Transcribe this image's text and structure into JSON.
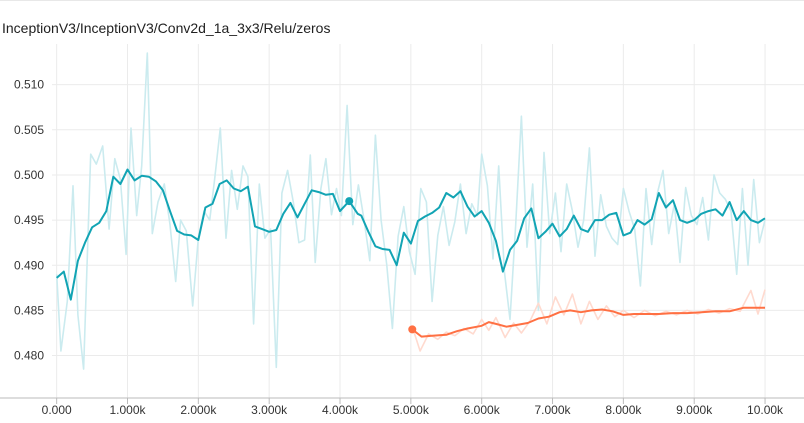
{
  "chart_data": {
    "type": "line",
    "title": "InceptionV3/InceptionV3/Conv2d_1a_3x3/Relu/zeros",
    "xlabel": "",
    "ylabel": "",
    "xlim": [
      -800,
      10550
    ],
    "ylim": [
      0.4753,
      0.5145
    ],
    "grid": true,
    "x_ticks": [
      0,
      1000,
      2000,
      3000,
      4000,
      5000,
      6000,
      7000,
      8000,
      9000,
      10000
    ],
    "x_tick_labels": [
      "0.000",
      "1.000k",
      "2.000k",
      "3.000k",
      "4.000k",
      "5.000k",
      "6.000k",
      "7.000k",
      "8.000k",
      "9.000k",
      "10.00k"
    ],
    "y_ticks": [
      0.48,
      0.485,
      0.49,
      0.495,
      0.5,
      0.505,
      0.51
    ],
    "y_tick_labels": [
      "0.480",
      "0.485",
      "0.490",
      "0.495",
      "0.500",
      "0.505",
      "0.510"
    ],
    "series": [
      {
        "color": "#12a4b4",
        "raw_color": "#cbebef",
        "marker": [
          4130,
          0.4971
        ],
        "smoothed": [
          [
            0,
            0.4886
          ],
          [
            100,
            0.4893
          ],
          [
            200,
            0.4862
          ],
          [
            300,
            0.4905
          ],
          [
            400,
            0.4925
          ],
          [
            500,
            0.4942
          ],
          [
            600,
            0.4947
          ],
          [
            700,
            0.496
          ],
          [
            800,
            0.4998
          ],
          [
            900,
            0.499
          ],
          [
            1000,
            0.5006
          ],
          [
            1100,
            0.4994
          ],
          [
            1200,
            0.4999
          ],
          [
            1300,
            0.4998
          ],
          [
            1400,
            0.4993
          ],
          [
            1500,
            0.4983
          ],
          [
            1600,
            0.496
          ],
          [
            1700,
            0.4938
          ],
          [
            1800,
            0.4934
          ],
          [
            1900,
            0.4933
          ],
          [
            2000,
            0.4928
          ],
          [
            2100,
            0.4964
          ],
          [
            2200,
            0.4968
          ],
          [
            2300,
            0.499
          ],
          [
            2400,
            0.4994
          ],
          [
            2500,
            0.4985
          ],
          [
            2600,
            0.4982
          ],
          [
            2700,
            0.4987
          ],
          [
            2800,
            0.4943
          ],
          [
            2900,
            0.494
          ],
          [
            3000,
            0.4937
          ],
          [
            3100,
            0.4939
          ],
          [
            3200,
            0.4957
          ],
          [
            3300,
            0.4969
          ],
          [
            3400,
            0.4953
          ],
          [
            3500,
            0.4968
          ],
          [
            3600,
            0.4983
          ],
          [
            3700,
            0.4981
          ],
          [
            3800,
            0.4978
          ],
          [
            3900,
            0.4979
          ],
          [
            4000,
            0.496
          ],
          [
            4130,
            0.4971
          ],
          [
            4250,
            0.4957
          ],
          [
            4300,
            0.4955
          ],
          [
            4400,
            0.4937
          ],
          [
            4500,
            0.4921
          ],
          [
            4600,
            0.4918
          ],
          [
            4700,
            0.4917
          ],
          [
            4800,
            0.49
          ],
          [
            4900,
            0.4936
          ],
          [
            5000,
            0.4924
          ],
          [
            5100,
            0.4949
          ],
          [
            5200,
            0.4954
          ],
          [
            5300,
            0.4958
          ],
          [
            5400,
            0.4964
          ],
          [
            5500,
            0.498
          ],
          [
            5600,
            0.4975
          ],
          [
            5700,
            0.4982
          ],
          [
            5800,
            0.4965
          ],
          [
            5900,
            0.4954
          ],
          [
            6000,
            0.496
          ],
          [
            6100,
            0.4947
          ],
          [
            6200,
            0.4927
          ],
          [
            6300,
            0.4893
          ],
          [
            6400,
            0.4917
          ],
          [
            6500,
            0.4927
          ],
          [
            6600,
            0.4952
          ],
          [
            6700,
            0.4963
          ],
          [
            6800,
            0.493
          ],
          [
            6900,
            0.4937
          ],
          [
            7000,
            0.4946
          ],
          [
            7100,
            0.4932
          ],
          [
            7200,
            0.494
          ],
          [
            7300,
            0.4955
          ],
          [
            7400,
            0.494
          ],
          [
            7500,
            0.4937
          ],
          [
            7600,
            0.495
          ],
          [
            7700,
            0.495
          ],
          [
            7800,
            0.4956
          ],
          [
            7900,
            0.4958
          ],
          [
            8000,
            0.4933
          ],
          [
            8100,
            0.4936
          ],
          [
            8200,
            0.495
          ],
          [
            8300,
            0.4945
          ],
          [
            8400,
            0.4951
          ],
          [
            8500,
            0.498
          ],
          [
            8600,
            0.4964
          ],
          [
            8700,
            0.4972
          ],
          [
            8800,
            0.495
          ],
          [
            8900,
            0.4947
          ],
          [
            9000,
            0.495
          ],
          [
            9100,
            0.4957
          ],
          [
            9200,
            0.496
          ],
          [
            9300,
            0.4962
          ],
          [
            9400,
            0.4955
          ],
          [
            9500,
            0.497
          ],
          [
            9600,
            0.495
          ],
          [
            9700,
            0.496
          ],
          [
            9800,
            0.495
          ],
          [
            9900,
            0.4947
          ],
          [
            10000,
            0.4952
          ]
        ],
        "raw": [
          [
            0,
            0.489
          ],
          [
            60,
            0.4805
          ],
          [
            150,
            0.486
          ],
          [
            230,
            0.4988
          ],
          [
            300,
            0.4845
          ],
          [
            380,
            0.4785
          ],
          [
            480,
            0.5023
          ],
          [
            560,
            0.5012
          ],
          [
            650,
            0.5032
          ],
          [
            740,
            0.494
          ],
          [
            820,
            0.5018
          ],
          [
            900,
            0.4995
          ],
          [
            980,
            0.4912
          ],
          [
            1050,
            0.5052
          ],
          [
            1130,
            0.4955
          ],
          [
            1200,
            0.501
          ],
          [
            1280,
            0.5135
          ],
          [
            1350,
            0.4935
          ],
          [
            1430,
            0.497
          ],
          [
            1520,
            0.499
          ],
          [
            1600,
            0.4945
          ],
          [
            1680,
            0.4882
          ],
          [
            1750,
            0.495
          ],
          [
            1830,
            0.4938
          ],
          [
            1920,
            0.4855
          ],
          [
            2000,
            0.493
          ],
          [
            2080,
            0.496
          ],
          [
            2160,
            0.495
          ],
          [
            2230,
            0.4995
          ],
          [
            2310,
            0.5052
          ],
          [
            2390,
            0.493
          ],
          [
            2470,
            0.5005
          ],
          [
            2550,
            0.4962
          ],
          [
            2630,
            0.501
          ],
          [
            2700,
            0.4998
          ],
          [
            2780,
            0.4835
          ],
          [
            2860,
            0.499
          ],
          [
            2940,
            0.493
          ],
          [
            3020,
            0.494
          ],
          [
            3100,
            0.4787
          ],
          [
            3180,
            0.498
          ],
          [
            3260,
            0.5005
          ],
          [
            3340,
            0.497
          ],
          [
            3420,
            0.4925
          ],
          [
            3500,
            0.4928
          ],
          [
            3580,
            0.5022
          ],
          [
            3650,
            0.4903
          ],
          [
            3730,
            0.4985
          ],
          [
            3800,
            0.5018
          ],
          [
            3880,
            0.4956
          ],
          [
            3950,
            0.4985
          ],
          [
            4020,
            0.4955
          ],
          [
            4100,
            0.5077
          ],
          [
            4180,
            0.4945
          ],
          [
            4260,
            0.4989
          ],
          [
            4340,
            0.495
          ],
          [
            4420,
            0.4905
          ],
          [
            4500,
            0.5044
          ],
          [
            4580,
            0.495
          ],
          [
            4660,
            0.49
          ],
          [
            4740,
            0.483
          ],
          [
            4820,
            0.4932
          ],
          [
            4900,
            0.4965
          ],
          [
            4980,
            0.4915
          ],
          [
            5060,
            0.489
          ],
          [
            5140,
            0.4985
          ],
          [
            5220,
            0.497
          ],
          [
            5300,
            0.486
          ],
          [
            5380,
            0.4933
          ],
          [
            5460,
            0.4965
          ],
          [
            5540,
            0.4922
          ],
          [
            5620,
            0.4948
          ],
          [
            5700,
            0.499
          ],
          [
            5780,
            0.4935
          ],
          [
            5860,
            0.4968
          ],
          [
            5940,
            0.4955
          ],
          [
            6000,
            0.5023
          ],
          [
            6080,
            0.4988
          ],
          [
            6160,
            0.4907
          ],
          [
            6240,
            0.501
          ],
          [
            6320,
            0.4893
          ],
          [
            6400,
            0.484
          ],
          [
            6480,
            0.4945
          ],
          [
            6560,
            0.5065
          ],
          [
            6640,
            0.492
          ],
          [
            6720,
            0.499
          ],
          [
            6800,
            0.485
          ],
          [
            6880,
            0.5025
          ],
          [
            6960,
            0.4935
          ],
          [
            7040,
            0.498
          ],
          [
            7120,
            0.4915
          ],
          [
            7200,
            0.499
          ],
          [
            7280,
            0.496
          ],
          [
            7360,
            0.492
          ],
          [
            7440,
            0.495
          ],
          [
            7520,
            0.503
          ],
          [
            7600,
            0.491
          ],
          [
            7680,
            0.4978
          ],
          [
            7760,
            0.4943
          ],
          [
            7840,
            0.493
          ],
          [
            7920,
            0.4923
          ],
          [
            8000,
            0.4985
          ],
          [
            8080,
            0.496
          ],
          [
            8160,
            0.494
          ],
          [
            8240,
            0.4877
          ],
          [
            8320,
            0.4985
          ],
          [
            8400,
            0.4923
          ],
          [
            8480,
            0.498
          ],
          [
            8560,
            0.5005
          ],
          [
            8640,
            0.4935
          ],
          [
            8720,
            0.4968
          ],
          [
            8800,
            0.4903
          ],
          [
            8880,
            0.4986
          ],
          [
            8960,
            0.4955
          ],
          [
            9040,
            0.4945
          ],
          [
            9120,
            0.4975
          ],
          [
            9200,
            0.4928
          ],
          [
            9280,
            0.5
          ],
          [
            9360,
            0.498
          ],
          [
            9440,
            0.4973
          ],
          [
            9520,
            0.496
          ],
          [
            9600,
            0.489
          ],
          [
            9680,
            0.4985
          ],
          [
            9760,
            0.49
          ],
          [
            9840,
            0.4995
          ],
          [
            9920,
            0.4925
          ],
          [
            10000,
            0.495
          ]
        ]
      },
      {
        "color": "#ff7043",
        "raw_color": "#ffdacf",
        "marker": [
          5020,
          0.4829
        ],
        "smoothed": [
          [
            5020,
            0.4829
          ],
          [
            5150,
            0.4821
          ],
          [
            5300,
            0.4822
          ],
          [
            5500,
            0.4823
          ],
          [
            5650,
            0.4827
          ],
          [
            5800,
            0.483
          ],
          [
            6000,
            0.4833
          ],
          [
            6100,
            0.4837
          ],
          [
            6200,
            0.4835
          ],
          [
            6350,
            0.4832
          ],
          [
            6500,
            0.4834
          ],
          [
            6650,
            0.4836
          ],
          [
            6800,
            0.4841
          ],
          [
            6950,
            0.4843
          ],
          [
            7100,
            0.4848
          ],
          [
            7250,
            0.485
          ],
          [
            7400,
            0.4848
          ],
          [
            7550,
            0.485
          ],
          [
            7700,
            0.4851
          ],
          [
            7850,
            0.4849
          ],
          [
            8000,
            0.4845
          ],
          [
            8150,
            0.4846
          ],
          [
            8300,
            0.4846
          ],
          [
            8500,
            0.4846
          ],
          [
            8700,
            0.4847
          ],
          [
            8900,
            0.4847
          ],
          [
            9100,
            0.4848
          ],
          [
            9300,
            0.4849
          ],
          [
            9500,
            0.4849
          ],
          [
            9700,
            0.4853
          ],
          [
            9850,
            0.4853
          ],
          [
            10000,
            0.4853
          ]
        ],
        "raw": [
          [
            5020,
            0.4832
          ],
          [
            5130,
            0.4805
          ],
          [
            5250,
            0.4824
          ],
          [
            5380,
            0.4818
          ],
          [
            5500,
            0.4826
          ],
          [
            5620,
            0.4822
          ],
          [
            5750,
            0.483
          ],
          [
            5880,
            0.4824
          ],
          [
            6000,
            0.484
          ],
          [
            6100,
            0.4828
          ],
          [
            6200,
            0.4842
          ],
          [
            6330,
            0.482
          ],
          [
            6450,
            0.4836
          ],
          [
            6560,
            0.4825
          ],
          [
            6680,
            0.4838
          ],
          [
            6800,
            0.4858
          ],
          [
            6920,
            0.4835
          ],
          [
            7040,
            0.4865
          ],
          [
            7160,
            0.4845
          ],
          [
            7280,
            0.4868
          ],
          [
            7400,
            0.4835
          ],
          [
            7520,
            0.486
          ],
          [
            7640,
            0.484
          ],
          [
            7760,
            0.4855
          ],
          [
            7880,
            0.4843
          ],
          [
            8000,
            0.485
          ],
          [
            8150,
            0.4842
          ],
          [
            8300,
            0.485
          ],
          [
            8450,
            0.4844
          ],
          [
            8600,
            0.4849
          ],
          [
            8750,
            0.4845
          ],
          [
            8900,
            0.485
          ],
          [
            9050,
            0.4846
          ],
          [
            9200,
            0.4851
          ],
          [
            9350,
            0.4847
          ],
          [
            9500,
            0.4852
          ],
          [
            9650,
            0.4849
          ],
          [
            9800,
            0.4872
          ],
          [
            9900,
            0.4846
          ],
          [
            10000,
            0.4873
          ]
        ]
      }
    ]
  }
}
